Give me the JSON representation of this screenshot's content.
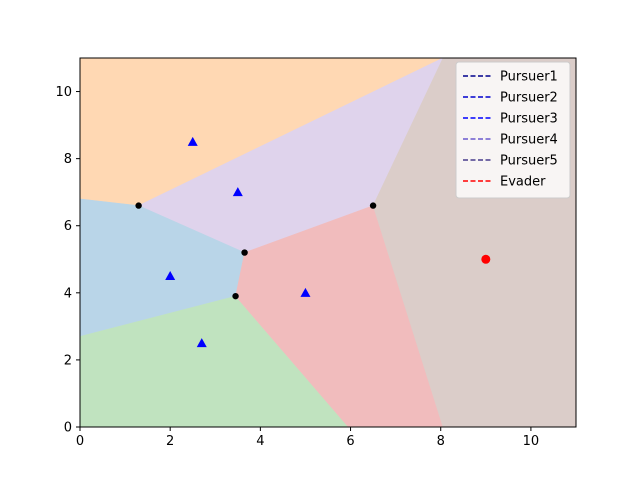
{
  "chart_data": {
    "type": "scatter",
    "title": "",
    "xlabel": "",
    "ylabel": "",
    "xlim": [
      0,
      11
    ],
    "ylim": [
      0,
      11
    ],
    "xticks": [
      "0",
      "2",
      "4",
      "6",
      "8",
      "10"
    ],
    "yticks": [
      "0",
      "2",
      "4",
      "6",
      "8",
      "10"
    ],
    "grid": false,
    "legend_position": "top-right",
    "regions": [
      {
        "color": "#ffd8b3",
        "vertices": [
          [
            0,
            11
          ],
          [
            11,
            11
          ],
          [
            11,
            11
          ],
          [
            8.05,
            11
          ],
          [
            6.5,
            6.6
          ],
          [
            1.3,
            6.6
          ],
          [
            0,
            6.8
          ]
        ]
      },
      {
        "color": "#dfd3ec",
        "vertices": [
          [
            1.3,
            6.6
          ],
          [
            6.5,
            6.6
          ],
          [
            8.05,
            11
          ],
          [
            8.05,
            11
          ],
          [
            1.3,
            6.6
          ]
        ]
      },
      {
        "color": "#dfd3ec",
        "vertices": [
          [
            8.05,
            11
          ],
          [
            6.5,
            6.6
          ],
          [
            3.65,
            5.2
          ],
          [
            1.3,
            6.6
          ]
        ]
      },
      {
        "color": "#b9d5e8",
        "vertices": [
          [
            0,
            6.8
          ],
          [
            1.3,
            6.6
          ],
          [
            3.65,
            5.2
          ],
          [
            3.45,
            3.9
          ],
          [
            0,
            2.7
          ]
        ]
      },
      {
        "color": "#c0e3bf",
        "vertices": [
          [
            0,
            2.7
          ],
          [
            3.45,
            3.9
          ],
          [
            5.95,
            0
          ],
          [
            0,
            0
          ]
        ]
      },
      {
        "color": "#f1bcbd",
        "vertices": [
          [
            3.45,
            3.9
          ],
          [
            3.65,
            5.2
          ],
          [
            6.5,
            6.6
          ],
          [
            8.05,
            0
          ],
          [
            5.95,
            0
          ]
        ]
      },
      {
        "color": "#dbcdc9",
        "vertices": [
          [
            6.5,
            6.6
          ],
          [
            8.05,
            11
          ],
          [
            11,
            11
          ],
          [
            11,
            0
          ],
          [
            8.05,
            0
          ]
        ]
      }
    ],
    "vertices_points": [
      [
        1.3,
        6.6
      ],
      [
        6.5,
        6.6
      ],
      [
        3.65,
        5.2
      ],
      [
        3.45,
        3.9
      ]
    ],
    "pursuers": [
      {
        "x": 2.5,
        "y": 8.5
      },
      {
        "x": 3.5,
        "y": 7.0
      },
      {
        "x": 2.0,
        "y": 4.5
      },
      {
        "x": 5.0,
        "y": 4.0
      },
      {
        "x": 2.7,
        "y": 2.5
      }
    ],
    "evader": {
      "x": 9.0,
      "y": 5.0
    },
    "legend": [
      {
        "name": "Pursuer1",
        "color": "#00008b"
      },
      {
        "name": "Pursuer2",
        "color": "#0000cd"
      },
      {
        "name": "Pursuer3",
        "color": "#0000ff"
      },
      {
        "name": "Pursuer4",
        "color": "#6a5acd"
      },
      {
        "name": "Pursuer5",
        "color": "#483d8b"
      },
      {
        "name": "Evader",
        "color": "#ff0000"
      }
    ],
    "colors": {
      "pursuer_marker": "#0000ff",
      "evader_marker": "#ff0000",
      "vertex_marker": "#000000"
    }
  }
}
